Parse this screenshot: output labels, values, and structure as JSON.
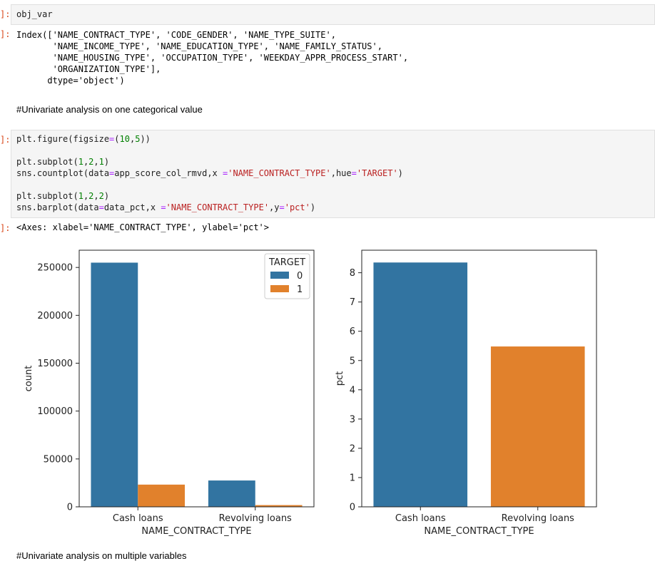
{
  "cells": {
    "c1": {
      "prompt": "]:",
      "code": "obj_var",
      "out_prompt": "]:",
      "output_lines": [
        "Index(['NAME_CONTRACT_TYPE', 'CODE_GENDER', 'NAME_TYPE_SUITE',",
        "       'NAME_INCOME_TYPE', 'NAME_EDUCATION_TYPE', 'NAME_FAMILY_STATUS',",
        "       'NAME_HOUSING_TYPE', 'OCCUPATION_TYPE', 'WEEKDAY_APPR_PROCESS_START',",
        "       'ORGANIZATION_TYPE'],",
        "      dtype='object')"
      ]
    },
    "markdown1": "#Univariate analysis on one categorical value",
    "c2": {
      "prompt": "]:",
      "lines": [
        [
          [
            "plt.figure(figsize",
            ""
          ],
          [
            "=",
            "op"
          ],
          [
            "(",
            ""
          ],
          [
            "10",
            "num"
          ],
          [
            ",",
            ""
          ],
          [
            "5",
            "num"
          ],
          [
            "))",
            ""
          ]
        ],
        [],
        [
          [
            "plt.subplot(",
            ""
          ],
          [
            "1",
            "num"
          ],
          [
            ",",
            ""
          ],
          [
            "2",
            "num"
          ],
          [
            ",",
            ""
          ],
          [
            "1",
            "num"
          ],
          [
            ")",
            ""
          ]
        ],
        [
          [
            "sns.countplot(data",
            ""
          ],
          [
            "=",
            "op"
          ],
          [
            "app_score_col_rmvd,x ",
            ""
          ],
          [
            "=",
            "op"
          ],
          [
            "'NAME_CONTRACT_TYPE'",
            "str"
          ],
          [
            ",hue",
            ""
          ],
          [
            "=",
            "op"
          ],
          [
            "'TARGET'",
            "str"
          ],
          [
            ")",
            ""
          ]
        ],
        [],
        [
          [
            "plt.subplot(",
            ""
          ],
          [
            "1",
            "num"
          ],
          [
            ",",
            ""
          ],
          [
            "2",
            "num"
          ],
          [
            ",",
            ""
          ],
          [
            "2",
            "num"
          ],
          [
            ")",
            ""
          ]
        ],
        [
          [
            "sns.barplot(data",
            ""
          ],
          [
            "=",
            "op"
          ],
          [
            "data_pct,x ",
            ""
          ],
          [
            "=",
            "op"
          ],
          [
            "'NAME_CONTRACT_TYPE'",
            "str"
          ],
          [
            ",y",
            ""
          ],
          [
            "=",
            "op"
          ],
          [
            "'pct'",
            "str"
          ],
          [
            ")",
            ""
          ]
        ]
      ],
      "out_prompt": "]:",
      "output": "<Axes: xlabel='NAME_CONTRACT_TYPE', ylabel='pct'>"
    },
    "markdown2": "#Univariate analysis on multiple variables"
  },
  "chart_data": [
    {
      "type": "bar",
      "categories": [
        "Cash loans",
        "Revolving loans"
      ],
      "series": [
        {
          "name": "0",
          "color": "#3274a1",
          "values": [
            255000,
            27500
          ]
        },
        {
          "name": "1",
          "color": "#e1812c",
          "values": [
            23200,
            1800
          ]
        }
      ],
      "xlabel": "NAME_CONTRACT_TYPE",
      "ylabel": "count",
      "ylim": [
        0,
        268000
      ],
      "yticks": [
        0,
        50000,
        100000,
        150000,
        200000,
        250000
      ],
      "legend": {
        "title": "TARGET",
        "placement": "top-right"
      }
    },
    {
      "type": "bar",
      "categories": [
        "Cash loans",
        "Revolving loans"
      ],
      "values": [
        8.35,
        5.48
      ],
      "colors": [
        "#3274a1",
        "#e1812c"
      ],
      "xlabel": "NAME_CONTRACT_TYPE",
      "ylabel": "pct",
      "ylim": [
        0,
        8.77
      ],
      "yticks": [
        0,
        1,
        2,
        3,
        4,
        5,
        6,
        7,
        8
      ]
    }
  ]
}
